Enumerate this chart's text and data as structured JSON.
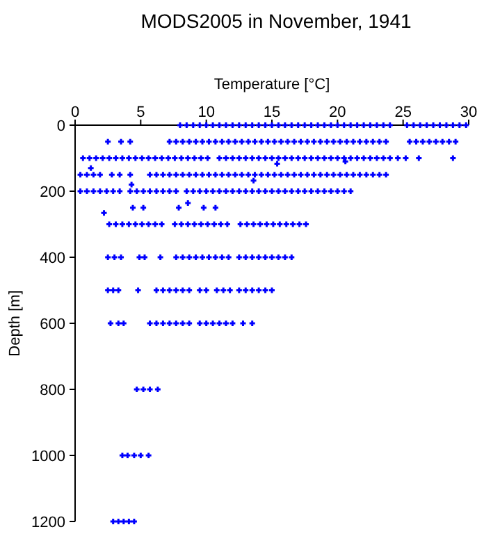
{
  "chart_data": {
    "type": "scatter",
    "title": "MODS2005 in November, 1941",
    "xlabel": "Temperature [°C]",
    "ylabel": "Depth [m]",
    "xlim": [
      0,
      30
    ],
    "xticks": [
      0,
      5,
      10,
      15,
      20,
      25,
      30
    ],
    "ylim": [
      1200,
      0
    ],
    "yticks": [
      0,
      200,
      400,
      600,
      800,
      1000,
      1200
    ],
    "marker": "cross",
    "series": [
      {
        "color": "#0000ff",
        "x": [
          8,
          8.5,
          9,
          9.5,
          10,
          10.5,
          11,
          11.5,
          12,
          12.5,
          13,
          13.5,
          14,
          14.5,
          15,
          15.5,
          16,
          16.5,
          17,
          17.5,
          18,
          18.5,
          19,
          19.5,
          20,
          20.5,
          21,
          21.5,
          22,
          22.5,
          23,
          23.5,
          24,
          25.3,
          25.8,
          26.3,
          26.8,
          27.3,
          27.8,
          28.3,
          28.8,
          29.3,
          29.8
        ],
        "values": [
          0,
          0,
          0,
          0,
          0,
          0,
          0,
          0,
          0,
          0,
          0,
          0,
          0,
          0,
          0,
          0,
          0,
          0,
          0,
          0,
          0,
          0,
          0,
          0,
          0,
          0,
          0,
          0,
          0,
          0,
          0,
          0,
          0,
          0,
          0,
          0,
          0,
          0,
          0,
          0,
          0,
          0,
          0
        ]
      },
      {
        "color": "#0000ff",
        "x": [
          2.5,
          3.5,
          4.2,
          7.2,
          7.7,
          8.2,
          8.7,
          9.2,
          9.7,
          10.2,
          10.7,
          11.2,
          11.7,
          12.2,
          12.7,
          13.2,
          13.7,
          14.2,
          14.7,
          15.2,
          15.7,
          16.2,
          16.7,
          17.2,
          17.7,
          18.2,
          18.7,
          19.2,
          19.7,
          20.2,
          20.7,
          21.2,
          21.7,
          22.2,
          22.7,
          23.2,
          23.7,
          25.5,
          26,
          26.5,
          27,
          27.5,
          28,
          28.5,
          29
        ],
        "values": [
          50,
          50,
          50,
          50,
          50,
          50,
          50,
          50,
          50,
          50,
          50,
          50,
          50,
          50,
          50,
          50,
          50,
          50,
          50,
          50,
          50,
          50,
          50,
          50,
          50,
          50,
          50,
          50,
          50,
          50,
          50,
          50,
          50,
          50,
          50,
          50,
          50,
          50,
          50,
          50,
          50,
          50,
          50,
          50,
          50
        ]
      },
      {
        "color": "#0000ff",
        "x": [
          0.6,
          1.1,
          1.6,
          2.1,
          2.6,
          3.1,
          3.6,
          4.1,
          4.6,
          5.1,
          5.6,
          6.1,
          6.6,
          7.1,
          7.6,
          8.1,
          8.6,
          9.1,
          9.6,
          10.1,
          11,
          11.5,
          12,
          12.5,
          13,
          13.5,
          14,
          14.5,
          15,
          15.5,
          16,
          16.5,
          17,
          17.5,
          18,
          18.5,
          19,
          19.5,
          20,
          20.5,
          21,
          21.5,
          22,
          22.5,
          23,
          23.5,
          24,
          24.6,
          25.2,
          26.2,
          28.8
        ],
        "values": [
          100,
          100,
          100,
          100,
          100,
          100,
          100,
          100,
          100,
          100,
          100,
          100,
          100,
          100,
          100,
          100,
          100,
          100,
          100,
          100,
          100,
          100,
          100,
          100,
          100,
          100,
          100,
          100,
          100,
          100,
          100,
          100,
          100,
          100,
          100,
          100,
          100,
          100,
          100,
          100,
          100,
          100,
          100,
          100,
          100,
          100,
          100,
          100,
          100,
          100,
          100
        ]
      },
      {
        "color": "#0000ff",
        "x": [
          0.4,
          0.9,
          1.4,
          1.9,
          2.8,
          3.4,
          4.2,
          5.7,
          6.2,
          6.7,
          7.2,
          7.7,
          8.2,
          8.7,
          9.2,
          9.7,
          10.2,
          10.7,
          11.2,
          11.7,
          12.2,
          12.7,
          13.2,
          13.7,
          14.2,
          14.7,
          15.2,
          15.7,
          16.2,
          16.7,
          17.2,
          17.7,
          18.2,
          18.7,
          19.2,
          19.7,
          20.2,
          20.7,
          21.2,
          21.7,
          22.2,
          22.7,
          23.2,
          23.7
        ],
        "values": [
          150,
          150,
          150,
          150,
          150,
          150,
          150,
          150,
          150,
          150,
          150,
          150,
          150,
          150,
          150,
          150,
          150,
          150,
          150,
          150,
          150,
          150,
          150,
          150,
          150,
          150,
          150,
          150,
          150,
          150,
          150,
          150,
          150,
          150,
          150,
          150,
          150,
          150,
          150,
          150,
          150,
          150,
          150,
          150
        ]
      },
      {
        "color": "#0000ff",
        "x": [
          0.4,
          0.9,
          1.4,
          1.9,
          2.4,
          2.9,
          3.4,
          4.2,
          4.7,
          5.2,
          5.7,
          6.2,
          6.7,
          7.2,
          7.7,
          8.5,
          9,
          9.5,
          10,
          10.5,
          11,
          11.5,
          12,
          12.5,
          13,
          13.5,
          14,
          14.5,
          15,
          15.5,
          16,
          16.5,
          17,
          17.5,
          18,
          18.5,
          19,
          19.5,
          20,
          20.5,
          21
        ],
        "values": [
          200,
          200,
          200,
          200,
          200,
          200,
          200,
          200,
          200,
          200,
          200,
          200,
          200,
          200,
          200,
          200,
          200,
          200,
          200,
          200,
          200,
          200,
          200,
          200,
          200,
          200,
          200,
          200,
          200,
          200,
          200,
          200,
          200,
          200,
          200,
          200,
          200,
          200,
          200,
          200,
          200
        ]
      },
      {
        "color": "#0000ff",
        "x": [
          4.4,
          5.2,
          7.9,
          9.8,
          10.7
        ],
        "values": [
          250,
          250,
          250,
          250,
          250
        ]
      },
      {
        "color": "#0000ff",
        "x": [
          2.6,
          3.1,
          3.6,
          4.1,
          4.6,
          5.1,
          5.6,
          6.1,
          6.6,
          7.6,
          8.1,
          8.6,
          9.1,
          9.6,
          10.1,
          10.6,
          11.1,
          11.6,
          12.6,
          13.1,
          13.6,
          14.1,
          14.6,
          15.1,
          15.6,
          16.1,
          16.6,
          17.1,
          17.6
        ],
        "values": [
          300,
          300,
          300,
          300,
          300,
          300,
          300,
          300,
          300,
          300,
          300,
          300,
          300,
          300,
          300,
          300,
          300,
          300,
          300,
          300,
          300,
          300,
          300,
          300,
          300,
          300,
          300,
          300,
          300
        ]
      },
      {
        "color": "#0000ff",
        "x": [
          2.5,
          3,
          3.5,
          4.9,
          5.3,
          6.5,
          7.7,
          8.2,
          8.7,
          9.2,
          9.7,
          10.2,
          10.7,
          11.2,
          11.7,
          12.5,
          13,
          13.5,
          14,
          14.5,
          15,
          15.5,
          16,
          16.5
        ],
        "values": [
          400,
          400,
          400,
          400,
          400,
          400,
          400,
          400,
          400,
          400,
          400,
          400,
          400,
          400,
          400,
          400,
          400,
          400,
          400,
          400,
          400,
          400,
          400,
          400
        ]
      },
      {
        "color": "#0000ff",
        "x": [
          2.5,
          2.9,
          3.3,
          4.8,
          6.2,
          6.7,
          7.2,
          7.7,
          8.2,
          8.7,
          9.5,
          10,
          10.8,
          11.3,
          11.8,
          12.5,
          13,
          13.5,
          14,
          14.5,
          15
        ],
        "values": [
          500,
          500,
          500,
          500,
          500,
          500,
          500,
          500,
          500,
          500,
          500,
          500,
          500,
          500,
          500,
          500,
          500,
          500,
          500,
          500,
          500
        ]
      },
      {
        "color": "#0000ff",
        "x": [
          2.7,
          3.3,
          3.7,
          5.7,
          6.2,
          6.7,
          7.2,
          7.7,
          8.2,
          8.7,
          9.5,
          10,
          10.5,
          11,
          11.5,
          12,
          12.8,
          13.5
        ],
        "values": [
          600,
          600,
          600,
          600,
          600,
          600,
          600,
          600,
          600,
          600,
          600,
          600,
          600,
          600,
          600,
          600,
          600,
          600
        ]
      },
      {
        "color": "#0000ff",
        "x": [
          4.7,
          5.2,
          5.7,
          6.3
        ],
        "values": [
          800,
          800,
          800,
          800
        ]
      },
      {
        "color": "#0000ff",
        "x": [
          3.6,
          4,
          4.5,
          5,
          5.6
        ],
        "values": [
          1000,
          1000,
          1000,
          1000,
          1000
        ]
      },
      {
        "color": "#0000ff",
        "x": [
          2.9,
          3.3,
          3.7,
          4.1,
          4.5
        ],
        "values": [
          1200,
          1200,
          1200,
          1200,
          1200
        ]
      },
      {
        "color": "#0000ff",
        "x": [
          13.6,
          2.2,
          8.6,
          1.2,
          15.4,
          20.6,
          4.3
        ],
        "values": [
          168,
          266,
          236,
          130,
          117,
          110,
          180
        ]
      }
    ]
  }
}
